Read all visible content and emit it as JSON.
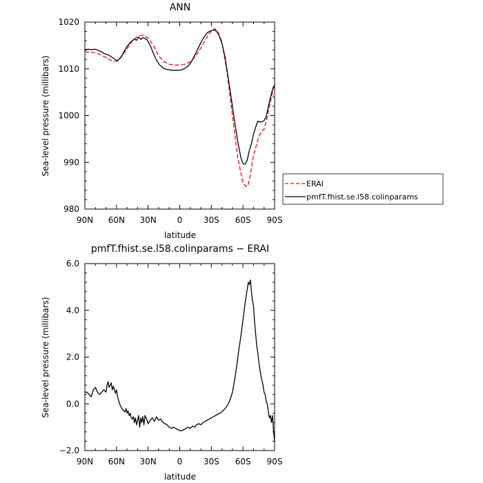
{
  "chart_data": [
    {
      "type": "line",
      "title": "ANN",
      "xlabel": "latitude",
      "ylabel": "Sea-level pressure (millibars)",
      "xlim": [
        90,
        -90
      ],
      "ylim": [
        980,
        1020
      ],
      "x_ticks": [
        90,
        60,
        30,
        0,
        -30,
        -60,
        -90
      ],
      "x_tick_labels": [
        "90N",
        "60N",
        "30N",
        "0",
        "30S",
        "60S",
        "90S"
      ],
      "y_ticks": [
        980,
        990,
        1000,
        1010,
        1020
      ],
      "y_tick_labels": [
        "980",
        "990",
        "1000",
        "1010",
        "1020"
      ],
      "legend_position": "outside-right",
      "series": [
        {
          "name": "ERAI",
          "color": "#ff0000",
          "dash": "dashed",
          "x": [
            90,
            85,
            80,
            75,
            70,
            65,
            60,
            55,
            50,
            45,
            40,
            35,
            30,
            25,
            20,
            15,
            10,
            5,
            0,
            -5,
            -10,
            -15,
            -20,
            -25,
            -30,
            -33,
            -36,
            -40,
            -45,
            -50,
            -55,
            -60,
            -63,
            -65,
            -67,
            -70,
            -75,
            -78,
            -80,
            -82,
            -85,
            -88,
            -90
          ],
          "y": [
            1013.6,
            1013.6,
            1013.4,
            1013.0,
            1012.4,
            1011.8,
            1011.6,
            1012.7,
            1014.3,
            1016.0,
            1016.9,
            1017.2,
            1016.6,
            1015.0,
            1012.8,
            1011.5,
            1011.0,
            1010.8,
            1010.8,
            1011.0,
            1011.5,
            1012.7,
            1014.5,
            1016.5,
            1018.2,
            1018.6,
            1018.0,
            1015.8,
            1009.0,
            1000.0,
            991.0,
            985.5,
            984.8,
            985.2,
            987.5,
            991.5,
            995.5,
            996.8,
            997.0,
            998.8,
            1002.0,
            1005.0,
            1006.8
          ]
        },
        {
          "name": "pmfT.fhist.se.l58.colinparams",
          "color": "#000000",
          "dash": "solid",
          "x": [
            90,
            87,
            84,
            80,
            77,
            74,
            71,
            68,
            65,
            62,
            59,
            56,
            53,
            50,
            47,
            45,
            43,
            41,
            39,
            37,
            35,
            33,
            31,
            28,
            25,
            22,
            19,
            16,
            13,
            10,
            7,
            4,
            1,
            -2,
            -5,
            -8,
            -11,
            -14,
            -17,
            -20,
            -23,
            -26,
            -29,
            -31,
            -33,
            -35,
            -37,
            -40,
            -43,
            -46,
            -49,
            -52,
            -55,
            -58,
            -60,
            -62,
            -64,
            -66,
            -68,
            -70,
            -72,
            -74,
            -76,
            -78,
            -80,
            -82,
            -84,
            -86,
            -88,
            -90
          ],
          "y": [
            1014.1,
            1014.2,
            1014.1,
            1014.2,
            1013.9,
            1013.6,
            1013.2,
            1013.0,
            1012.6,
            1012.1,
            1011.7,
            1012.4,
            1013.6,
            1014.8,
            1015.6,
            1016.0,
            1016.4,
            1016.1,
            1016.8,
            1016.3,
            1016.7,
            1016.5,
            1016.2,
            1015.0,
            1013.3,
            1011.8,
            1010.8,
            1010.2,
            1009.9,
            1009.8,
            1009.7,
            1009.7,
            1009.7,
            1009.8,
            1010.1,
            1010.6,
            1011.5,
            1012.8,
            1014.2,
            1015.6,
            1016.8,
            1017.7,
            1018.1,
            1018.2,
            1018.3,
            1018.0,
            1017.3,
            1015.5,
            1012.5,
            1008.0,
            1003.5,
            998.8,
            994.5,
            991.0,
            989.7,
            989.6,
            990.5,
            992.5,
            994.0,
            996.0,
            997.5,
            998.8,
            998.6,
            998.7,
            998.9,
            999.8,
            1001.8,
            1003.8,
            1005.5,
            1006.6
          ]
        }
      ]
    },
    {
      "type": "line",
      "title": "pmfT.fhist.se.l58.colinparams − ERAI",
      "xlabel": "latitude",
      "ylabel": "Sea-level pressure (millibars)",
      "xlim": [
        90,
        -90
      ],
      "ylim": [
        -2.0,
        6.0
      ],
      "x_ticks": [
        90,
        60,
        30,
        0,
        -30,
        -60,
        -90
      ],
      "x_tick_labels": [
        "90N",
        "60N",
        "30N",
        "0",
        "30S",
        "60S",
        "90S"
      ],
      "y_ticks": [
        -2.0,
        0.0,
        2.0,
        4.0,
        6.0
      ],
      "y_tick_labels": [
        "−2.0",
        "0.0",
        "2.0",
        "4.0",
        "6.0"
      ],
      "series": [
        {
          "color": "#000000",
          "dash": "solid",
          "x": [
            90,
            88,
            86,
            84,
            82,
            80,
            78,
            76,
            74,
            72,
            70,
            69,
            68,
            67,
            66,
            65,
            64,
            63,
            62,
            61,
            60,
            59,
            58,
            57,
            56,
            55,
            54,
            53,
            52,
            51,
            50,
            49,
            48,
            47,
            46,
            45,
            44,
            43,
            42,
            41,
            40,
            39,
            38,
            37,
            36,
            35,
            34,
            33,
            32,
            31,
            30,
            28,
            26,
            24,
            22,
            20,
            18,
            16,
            14,
            12,
            10,
            8,
            6,
            4,
            2,
            0,
            -2,
            -4,
            -6,
            -8,
            -10,
            -12,
            -14,
            -16,
            -18,
            -20,
            -22,
            -24,
            -26,
            -28,
            -30,
            -32,
            -34,
            -36,
            -38,
            -40,
            -42,
            -44,
            -46,
            -48,
            -50,
            -52,
            -54,
            -56,
            -58,
            -60,
            -62,
            -64,
            -65,
            -66,
            -67,
            -68,
            -69,
            -70,
            -71,
            -72,
            -73,
            -74,
            -75,
            -76,
            -77,
            -78,
            -79,
            -80,
            -81,
            -82,
            -83,
            -84,
            -85,
            -86,
            -87,
            -88,
            -89,
            -90
          ],
          "y": [
            0.5,
            0.5,
            0.4,
            0.3,
            0.6,
            0.7,
            0.5,
            0.4,
            0.5,
            0.6,
            0.5,
            0.8,
            0.95,
            0.7,
            0.8,
            0.9,
            0.6,
            0.75,
            0.6,
            0.45,
            0.6,
            0.3,
            0.15,
            0.0,
            -0.1,
            -0.2,
            -0.25,
            -0.3,
            -0.35,
            -0.2,
            -0.4,
            -0.3,
            -0.5,
            -0.4,
            -0.6,
            -0.65,
            -0.55,
            -0.8,
            -0.6,
            -0.9,
            -0.7,
            -0.5,
            -1.0,
            -0.6,
            -0.8,
            -0.55,
            -0.9,
            -0.5,
            -0.6,
            -0.7,
            -0.85,
            -0.7,
            -0.6,
            -0.75,
            -0.55,
            -0.7,
            -0.65,
            -0.8,
            -0.85,
            -0.9,
            -1.0,
            -1.05,
            -1.0,
            -1.05,
            -1.1,
            -1.15,
            -1.15,
            -1.1,
            -1.05,
            -1.0,
            -1.05,
            -0.95,
            -1.0,
            -0.9,
            -0.85,
            -0.9,
            -0.8,
            -0.75,
            -0.7,
            -0.65,
            -0.6,
            -0.55,
            -0.5,
            -0.45,
            -0.4,
            -0.35,
            -0.25,
            -0.15,
            0.0,
            0.2,
            0.5,
            1.0,
            1.6,
            2.3,
            2.9,
            3.6,
            4.3,
            4.9,
            5.2,
            5.1,
            5.3,
            4.8,
            4.4,
            4.2,
            3.5,
            3.0,
            2.5,
            2.2,
            1.8,
            1.5,
            1.2,
            1.0,
            0.8,
            0.5,
            0.4,
            0.1,
            0.0,
            -0.3,
            -0.6,
            -0.5,
            -0.8,
            -0.5,
            -1.2,
            -1.6
          ]
        }
      ]
    }
  ]
}
